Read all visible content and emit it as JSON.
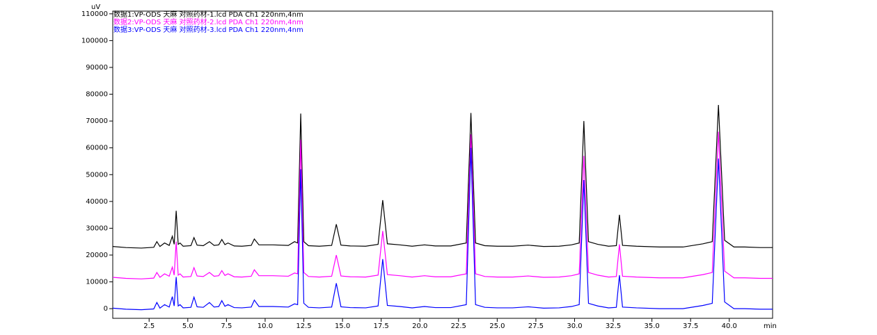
{
  "chart_data": {
    "type": "line",
    "y_label": "uV",
    "x_label": "min",
    "xlim": [
      0.15,
      42.8
    ],
    "ylim": [
      -3600,
      111000
    ],
    "xticks": [
      2.5,
      {
        "value": 5,
        "label": "5.0"
      },
      7.5,
      {
        "value": 10,
        "label": "10.0"
      },
      12.5,
      {
        "value": 15,
        "label": "15.0"
      },
      17.5,
      {
        "value": 20,
        "label": "20.0"
      },
      22.5,
      {
        "value": 25,
        "label": "25.0"
      },
      27.5,
      {
        "value": 30,
        "label": "30.0"
      },
      32.5,
      {
        "value": 35,
        "label": "35.0"
      },
      37.5,
      {
        "value": 40,
        "label": "40.0"
      }
    ],
    "yticks": [
      0,
      10000,
      20000,
      30000,
      40000,
      50000,
      60000,
      70000,
      80000,
      90000,
      100000,
      110000
    ],
    "grid": false,
    "x": [
      0.15,
      1.0,
      2.0,
      2.8,
      3.0,
      3.2,
      3.5,
      3.8,
      4.0,
      4.12,
      4.25,
      4.38,
      4.5,
      4.7,
      5.2,
      5.4,
      5.6,
      6.0,
      6.4,
      6.7,
      7.0,
      7.2,
      7.4,
      7.6,
      8.0,
      8.5,
      9.1,
      9.3,
      9.6,
      10.5,
      11.5,
      11.9,
      12.1,
      12.3,
      12.5,
      12.8,
      13.5,
      14.3,
      14.6,
      14.9,
      15.5,
      16.5,
      17.3,
      17.6,
      17.9,
      18.7,
      19.5,
      20.3,
      21.0,
      22.0,
      23.0,
      23.3,
      23.6,
      24.2,
      25.0,
      26.0,
      27.0,
      28.0,
      29.0,
      29.8,
      30.3,
      30.6,
      30.9,
      31.5,
      32.2,
      32.7,
      32.9,
      33.1,
      34.0,
      35.5,
      37.0,
      38.3,
      38.9,
      39.3,
      39.7,
      40.3,
      41.0,
      42.0,
      42.8
    ],
    "series": [
      {
        "name": "数据1:VP-ODS 天麻 对照药材-1.lcd PDA Ch1 220nm,4nm",
        "color": "#000000",
        "values": [
          23200,
          22800,
          22600,
          22900,
          25000,
          23200,
          24500,
          23600,
          27000,
          24000,
          36500,
          24000,
          24500,
          23300,
          23500,
          26500,
          23700,
          23500,
          25000,
          23600,
          23800,
          25800,
          23900,
          24500,
          23400,
          23300,
          23600,
          26000,
          23800,
          23800,
          23600,
          25000,
          24500,
          72800,
          25000,
          23500,
          23300,
          23600,
          31500,
          23700,
          23400,
          23300,
          24000,
          40500,
          24200,
          23800,
          23300,
          23800,
          23400,
          23400,
          24500,
          73000,
          24500,
          23500,
          23300,
          23300,
          23700,
          23200,
          23300,
          23800,
          24500,
          70000,
          25000,
          24000,
          23300,
          23500,
          35000,
          23600,
          23300,
          23000,
          23000,
          24200,
          25000,
          76000,
          25500,
          23000,
          23000,
          22800,
          22800
        ]
      },
      {
        "name": "数据2:VP-ODS 天麻 对照药材-2.lcd PDA Ch1 220nm,4nm",
        "color": "#ff00ff",
        "values": [
          11700,
          11300,
          11100,
          11400,
          13500,
          11700,
          13000,
          12100,
          15500,
          12500,
          25000,
          12500,
          13000,
          11800,
          12000,
          15300,
          12200,
          12000,
          13500,
          12100,
          12300,
          14200,
          12400,
          13000,
          11900,
          11800,
          12100,
          14500,
          12300,
          12300,
          12100,
          13300,
          13000,
          63000,
          13500,
          12000,
          11800,
          12100,
          20000,
          12200,
          11900,
          11800,
          12500,
          29000,
          12700,
          12300,
          11800,
          12300,
          11900,
          11900,
          13000,
          65000,
          13000,
          12000,
          11800,
          11800,
          12200,
          11700,
          11800,
          12300,
          13000,
          57000,
          13500,
          12500,
          11800,
          12000,
          24000,
          12100,
          11800,
          11500,
          11500,
          12700,
          13500,
          66000,
          14000,
          11500,
          11500,
          11300,
          11300
        ]
      },
      {
        "name": "数据3:VP-ODS 天麻 对照药材-3.lcd PDA Ch1 220nm,4nm",
        "color": "#0000ff",
        "values": [
          200,
          -200,
          -400,
          -100,
          2300,
          200,
          1500,
          600,
          4500,
          1000,
          11800,
          1000,
          1500,
          300,
          500,
          4300,
          700,
          500,
          2300,
          600,
          800,
          3000,
          900,
          1500,
          400,
          300,
          600,
          3200,
          800,
          800,
          600,
          1800,
          1500,
          52000,
          2000,
          500,
          300,
          600,
          9500,
          700,
          400,
          300,
          1000,
          18500,
          1200,
          800,
          300,
          800,
          400,
          400,
          1500,
          60000,
          1500,
          500,
          300,
          300,
          700,
          200,
          300,
          800,
          1500,
          48000,
          2000,
          1000,
          300,
          500,
          12500,
          600,
          300,
          0,
          0,
          1200,
          2000,
          56000,
          2500,
          0,
          0,
          -200,
          -200
        ]
      }
    ]
  }
}
